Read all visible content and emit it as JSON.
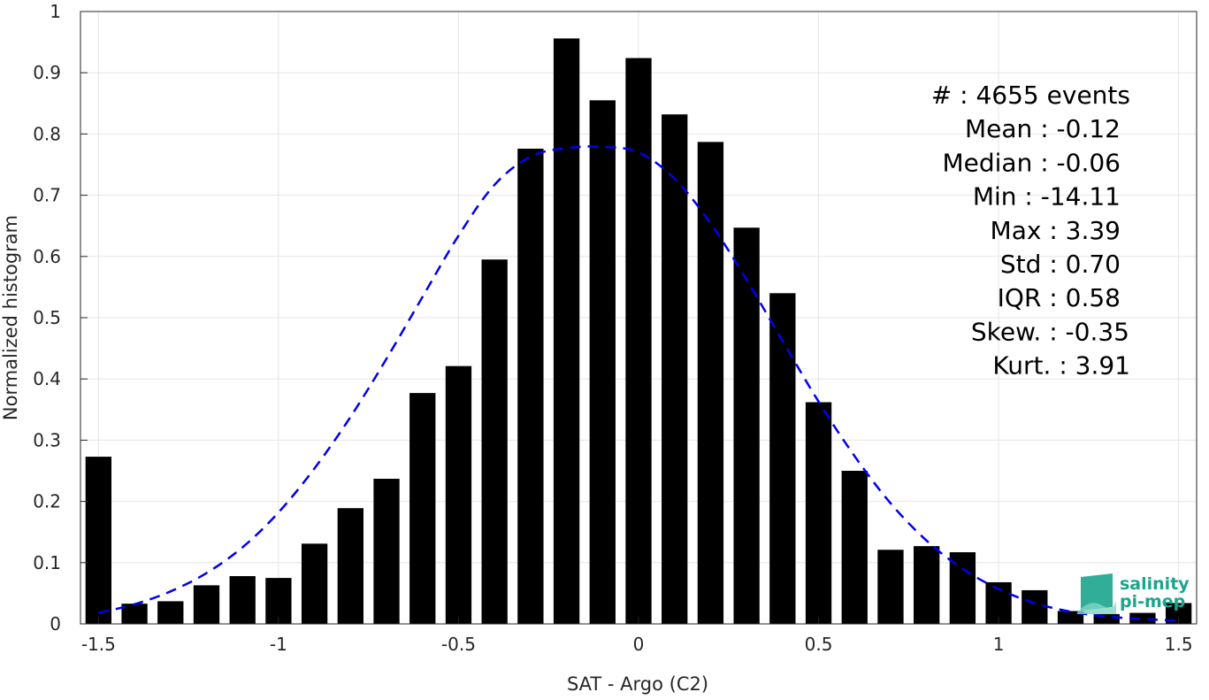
{
  "chart_data": {
    "type": "bar",
    "xlabel": "SAT - Argo (C2)",
    "ylabel": "Normalized histogram",
    "xlim": [
      -1.55,
      1.55
    ],
    "ylim": [
      0,
      1
    ],
    "grid": true,
    "xticks": [
      "-1.5",
      "-1",
      "-0.5",
      "0",
      "0.5",
      "1",
      "1.5"
    ],
    "xtick_values": [
      -1.5,
      -1,
      -0.5,
      0,
      0.5,
      1,
      1.5
    ],
    "yticks": [
      "0",
      "0.1",
      "0.2",
      "0.3",
      "0.4",
      "0.5",
      "0.6",
      "0.7",
      "0.8",
      "0.9",
      "1"
    ],
    "ytick_values": [
      0,
      0.1,
      0.2,
      0.3,
      0.4,
      0.5,
      0.6,
      0.7,
      0.8,
      0.9,
      1
    ],
    "bar_width": 0.072,
    "bars": {
      "x": [
        -1.5,
        -1.4,
        -1.3,
        -1.2,
        -1.1,
        -1.0,
        -0.9,
        -0.8,
        -0.7,
        -0.6,
        -0.5,
        -0.4,
        -0.3,
        -0.2,
        -0.1,
        0.0,
        0.1,
        0.2,
        0.3,
        0.4,
        0.5,
        0.6,
        0.7,
        0.8,
        0.9,
        1.0,
        1.1,
        1.2,
        1.3,
        1.4,
        1.5
      ],
      "values": [
        0.273,
        0.033,
        0.037,
        0.063,
        0.078,
        0.075,
        0.131,
        0.189,
        0.237,
        0.377,
        0.421,
        0.595,
        0.776,
        0.956,
        0.855,
        0.924,
        0.832,
        0.787,
        0.647,
        0.54,
        0.362,
        0.25,
        0.121,
        0.127,
        0.117,
        0.068,
        0.055,
        0.021,
        0.016,
        0.018,
        0.034
      ]
    },
    "fit_curve": {
      "style": "dashed",
      "color": "#0000ee",
      "x": [
        -1.5,
        -1.4,
        -1.3,
        -1.2,
        -1.1,
        -1.0,
        -0.9,
        -0.8,
        -0.7,
        -0.6,
        -0.5,
        -0.4,
        -0.3,
        -0.2,
        -0.1,
        0.0,
        0.1,
        0.2,
        0.3,
        0.4,
        0.5,
        0.6,
        0.7,
        0.8,
        0.9,
        1.0,
        1.1,
        1.2,
        1.3,
        1.4,
        1.5
      ],
      "values": [
        0.018,
        0.032,
        0.053,
        0.083,
        0.125,
        0.182,
        0.254,
        0.338,
        0.433,
        0.534,
        0.634,
        0.717,
        0.763,
        0.777,
        0.779,
        0.77,
        0.727,
        0.654,
        0.562,
        0.462,
        0.363,
        0.274,
        0.197,
        0.136,
        0.09,
        0.057,
        0.034,
        0.02,
        0.012,
        0.008,
        0.005
      ]
    },
    "stats": [
      "#  : 4655 events",
      "Mean : -0.12",
      "Median : -0.06",
      "Min : -14.11",
      "Max : 3.39",
      "Std : 0.70",
      "IQR : 0.58",
      "Skew. : -0.35",
      "Kurt. : 3.91"
    ],
    "colors": {
      "bars": "#000000",
      "grid": "#e6e6e6",
      "axis": "#262626",
      "logo": "#1aa58c"
    }
  },
  "logo": {
    "line1": "salinity",
    "line2": "pi-mep"
  }
}
